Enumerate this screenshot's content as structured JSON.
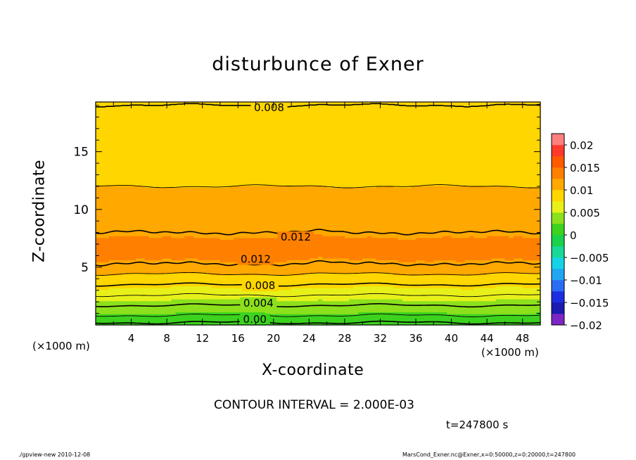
{
  "chart_data": {
    "type": "heatmap",
    "title": "disturbunce of Exner",
    "xlabel": "X-coordinate",
    "ylabel": "Z-coordinate",
    "x_unit_left": "(×1000 m)",
    "x_unit_right": "(×1000 m)",
    "xlim": [
      0,
      50
    ],
    "ylim": [
      0,
      19.3
    ],
    "x_ticks": [
      4,
      8,
      12,
      16,
      20,
      24,
      28,
      32,
      36,
      40,
      44,
      48
    ],
    "x_tick_labels": [
      "4",
      "8",
      "12",
      "16",
      "20",
      "24",
      "28",
      "32",
      "36",
      "40",
      "44",
      "48"
    ],
    "y_ticks": [
      5,
      10,
      15
    ],
    "y_tick_labels": [
      "5",
      "10",
      "15"
    ],
    "profile": {
      "z": [
        0,
        0.5,
        1,
        1.5,
        2,
        2.5,
        3,
        3.5,
        4,
        4.5,
        5,
        5.5,
        6,
        6.5,
        7,
        7.5,
        8,
        8.5,
        9,
        10,
        11,
        12,
        13,
        14,
        15,
        16,
        17,
        18,
        19,
        19.3
      ],
      "value": [
        0.0,
        0.0012,
        0.0024,
        0.0036,
        0.0046,
        0.0058,
        0.007,
        0.008,
        0.009,
        0.0102,
        0.0114,
        0.0124,
        0.0128,
        0.0129,
        0.0129,
        0.0126,
        0.012,
        0.0116,
        0.0114,
        0.0108,
        0.0104,
        0.01,
        0.0098,
        0.0094,
        0.009,
        0.0086,
        0.0082,
        0.0081,
        0.008,
        0.008
      ]
    },
    "contour_labels": [
      {
        "text": "0.008",
        "x": 19.5,
        "z": 18.8
      },
      {
        "text": "0.012",
        "x": 22.5,
        "z": 7.6
      },
      {
        "text": "0.012",
        "x": 18,
        "z": 5.7
      },
      {
        "text": "0.008",
        "x": 18.5,
        "z": 3.4
      },
      {
        "text": "0.004",
        "x": 18.3,
        "z": 1.9
      },
      {
        "text": "0.00",
        "x": 17.9,
        "z": 0.5
      }
    ],
    "colorbar": {
      "tick_labels": [
        "0.02",
        "0.015",
        "0.01",
        "0.005",
        "0",
        "−0.005",
        "−0.01",
        "−0.015",
        "−0.02"
      ],
      "range": [
        -0.02,
        0.02
      ],
      "levels": [
        {
          "from": -0.02,
          "to": -0.0175,
          "color": "#7d26c4"
        },
        {
          "from": -0.0175,
          "to": -0.015,
          "color": "#1b1bb0"
        },
        {
          "from": -0.015,
          "to": -0.0125,
          "color": "#1c2de0"
        },
        {
          "from": -0.0125,
          "to": -0.01,
          "color": "#2a6df5"
        },
        {
          "from": -0.01,
          "to": -0.0075,
          "color": "#22a6f2"
        },
        {
          "from": -0.0075,
          "to": -0.005,
          "color": "#14d3e6"
        },
        {
          "from": -0.005,
          "to": -0.0025,
          "color": "#18d99a"
        },
        {
          "from": -0.0025,
          "to": 0.0,
          "color": "#19d24a"
        },
        {
          "from": 0.0,
          "to": 0.0025,
          "color": "#3cd21e"
        },
        {
          "from": 0.0025,
          "to": 0.005,
          "color": "#8ce01c"
        },
        {
          "from": 0.005,
          "to": 0.0075,
          "color": "#e8f01a"
        },
        {
          "from": 0.0075,
          "to": 0.01,
          "color": "#ffd600"
        },
        {
          "from": 0.01,
          "to": 0.0125,
          "color": "#ffa800"
        },
        {
          "from": 0.0125,
          "to": 0.015,
          "color": "#ff8000"
        },
        {
          "from": 0.015,
          "to": 0.0175,
          "color": "#ff5a00"
        },
        {
          "from": 0.0175,
          "to": 0.02,
          "color": "#ff3a2a"
        },
        {
          "from": 0.02,
          "to": 0.0225,
          "color": "#ff7f7f"
        }
      ]
    }
  },
  "annotations": {
    "contour_interval": "CONTOUR INTERVAL = 2.000E-03",
    "time": "t=247800 s",
    "footer_left": "./gpview-new   2010-12-08",
    "footer_right": "MarsCond_Exner.nc@Exner,x=0:50000,z=0:20000,t=247800"
  }
}
